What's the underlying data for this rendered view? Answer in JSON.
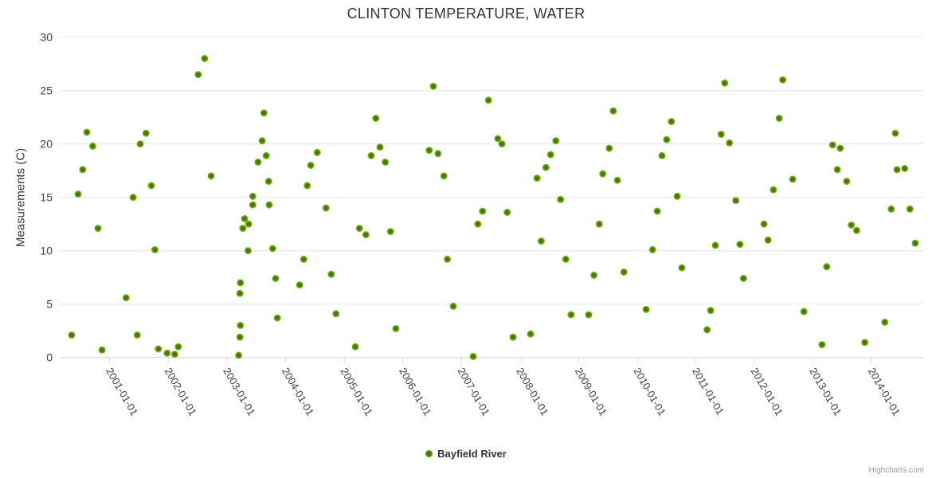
{
  "credits": {
    "label": "Highcharts.com"
  },
  "colors": {
    "marker_outer": "#86c11d",
    "marker_mid": "#4c7c0a",
    "marker_core": "#3e6a08",
    "grid_line": "#e6e6e6",
    "axis_line": "#ccd6eb",
    "tick_label": "#3f3f3f",
    "title_text": "#333340",
    "credits_text": "#999999"
  },
  "chart_data": {
    "type": "scatter",
    "title": "CLINTON TEMPERATURE, WATER",
    "ylabel": "Measurements (C)",
    "ylim": [
      0,
      30
    ],
    "y_ticks": [
      0,
      5,
      10,
      15,
      20,
      25,
      30
    ],
    "x_tick_labels": [
      "2001-01-01",
      "2002-01-01",
      "2003-01-01",
      "2004-01-01",
      "2005-01-01",
      "2006-01-01",
      "2007-01-01",
      "2008-01-01",
      "2009-01-01",
      "2010-01-01",
      "2011-01-01",
      "2012-01-01",
      "2013-01-01",
      "2014-01-01"
    ],
    "x_label_rotation_deg": 60,
    "grid": "horizontal-only",
    "legend_position": "bottom-center",
    "series": [
      {
        "name": "Bayfield River",
        "x_unit": "decimal-year",
        "data": [
          [
            2000.35,
            2.1
          ],
          [
            2000.46,
            15.3
          ],
          [
            2000.54,
            17.6
          ],
          [
            2000.61,
            21.1
          ],
          [
            2000.71,
            19.8
          ],
          [
            2000.8,
            12.1
          ],
          [
            2000.87,
            0.7
          ],
          [
            2001.28,
            5.6
          ],
          [
            2001.4,
            15.0
          ],
          [
            2001.47,
            2.1
          ],
          [
            2001.52,
            20.0
          ],
          [
            2001.62,
            21.0
          ],
          [
            2001.71,
            16.1
          ],
          [
            2001.77,
            10.1
          ],
          [
            2001.83,
            0.8
          ],
          [
            2001.98,
            0.4
          ],
          [
            2002.11,
            0.3
          ],
          [
            2002.17,
            1.0
          ],
          [
            2002.51,
            26.5
          ],
          [
            2002.62,
            28.0
          ],
          [
            2002.73,
            17.0
          ],
          [
            2003.2,
            0.2
          ],
          [
            2003.22,
            1.9
          ],
          [
            2003.22,
            6.0
          ],
          [
            2003.23,
            3.0
          ],
          [
            2003.23,
            7.0
          ],
          [
            2003.27,
            12.1
          ],
          [
            2003.3,
            13.0
          ],
          [
            2003.36,
            10.0
          ],
          [
            2003.37,
            12.5
          ],
          [
            2003.44,
            15.1
          ],
          [
            2003.44,
            14.3
          ],
          [
            2003.53,
            18.3
          ],
          [
            2003.6,
            20.3
          ],
          [
            2003.63,
            22.9
          ],
          [
            2003.67,
            18.9
          ],
          [
            2003.71,
            16.5
          ],
          [
            2003.72,
            14.3
          ],
          [
            2003.78,
            10.2
          ],
          [
            2003.83,
            7.4
          ],
          [
            2003.86,
            3.7
          ],
          [
            2004.24,
            6.8
          ],
          [
            2004.31,
            9.2
          ],
          [
            2004.37,
            16.1
          ],
          [
            2004.43,
            18.0
          ],
          [
            2004.54,
            19.2
          ],
          [
            2004.69,
            14.0
          ],
          [
            2004.78,
            7.8
          ],
          [
            2004.86,
            4.1
          ],
          [
            2005.19,
            1.0
          ],
          [
            2005.26,
            12.1
          ],
          [
            2005.37,
            11.5
          ],
          [
            2005.46,
            18.9
          ],
          [
            2005.54,
            22.4
          ],
          [
            2005.61,
            19.7
          ],
          [
            2005.7,
            18.3
          ],
          [
            2005.79,
            11.8
          ],
          [
            2005.88,
            2.7
          ],
          [
            2006.45,
            19.4
          ],
          [
            2006.52,
            25.4
          ],
          [
            2006.6,
            19.1
          ],
          [
            2006.7,
            17.0
          ],
          [
            2006.76,
            9.2
          ],
          [
            2006.86,
            4.8
          ],
          [
            2007.2,
            0.1
          ],
          [
            2007.28,
            12.5
          ],
          [
            2007.36,
            13.7
          ],
          [
            2007.46,
            24.1
          ],
          [
            2007.62,
            20.5
          ],
          [
            2007.69,
            20.0
          ],
          [
            2007.78,
            13.6
          ],
          [
            2007.88,
            1.9
          ],
          [
            2008.18,
            2.2
          ],
          [
            2008.29,
            16.8
          ],
          [
            2008.36,
            10.9
          ],
          [
            2008.44,
            17.8
          ],
          [
            2008.52,
            19.0
          ],
          [
            2008.61,
            20.3
          ],
          [
            2008.69,
            14.8
          ],
          [
            2008.78,
            9.2
          ],
          [
            2008.87,
            4.0
          ],
          [
            2009.17,
            4.0
          ],
          [
            2009.26,
            7.7
          ],
          [
            2009.35,
            12.5
          ],
          [
            2009.41,
            17.2
          ],
          [
            2009.52,
            19.6
          ],
          [
            2009.59,
            23.1
          ],
          [
            2009.66,
            16.6
          ],
          [
            2009.77,
            8.0
          ],
          [
            2010.15,
            4.5
          ],
          [
            2010.26,
            10.1
          ],
          [
            2010.34,
            13.7
          ],
          [
            2010.42,
            18.9
          ],
          [
            2010.5,
            20.4
          ],
          [
            2010.58,
            22.1
          ],
          [
            2010.68,
            15.1
          ],
          [
            2010.76,
            8.4
          ],
          [
            2011.19,
            2.6
          ],
          [
            2011.25,
            4.4
          ],
          [
            2011.33,
            10.5
          ],
          [
            2011.43,
            20.9
          ],
          [
            2011.49,
            25.7
          ],
          [
            2011.57,
            20.1
          ],
          [
            2011.68,
            14.7
          ],
          [
            2011.75,
            10.6
          ],
          [
            2011.81,
            7.4
          ],
          [
            2012.16,
            12.5
          ],
          [
            2012.23,
            11.0
          ],
          [
            2012.32,
            15.7
          ],
          [
            2012.42,
            22.4
          ],
          [
            2012.48,
            26.0
          ],
          [
            2012.65,
            16.7
          ],
          [
            2012.84,
            4.3
          ],
          [
            2013.15,
            1.2
          ],
          [
            2013.23,
            8.5
          ],
          [
            2013.33,
            19.9
          ],
          [
            2013.41,
            17.6
          ],
          [
            2013.46,
            19.6
          ],
          [
            2013.57,
            16.5
          ],
          [
            2013.65,
            12.4
          ],
          [
            2013.74,
            11.9
          ],
          [
            2013.88,
            1.4
          ],
          [
            2014.22,
            3.3
          ],
          [
            2014.33,
            13.9
          ],
          [
            2014.4,
            21.0
          ],
          [
            2014.43,
            17.6
          ],
          [
            2014.56,
            17.7
          ],
          [
            2014.65,
            13.9
          ],
          [
            2014.74,
            10.7
          ]
        ]
      }
    ]
  }
}
